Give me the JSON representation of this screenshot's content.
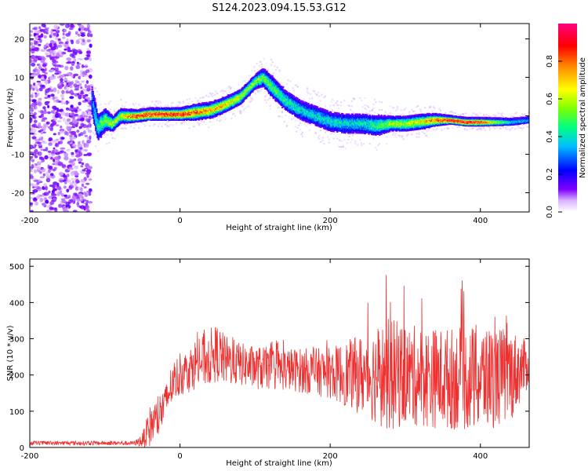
{
  "figure": {
    "title": "S124.2023.094.15.53.G12"
  },
  "chart_data": [
    {
      "type": "heatmap",
      "xlabel": "Height of straight line (km)",
      "ylabel": "Frequency (Hz)",
      "xlim": [
        -200,
        465
      ],
      "ylim": [
        -25,
        24
      ],
      "x_ticks": [
        -200,
        0,
        200,
        400
      ],
      "y_ticks": [
        -20,
        -10,
        0,
        10,
        20
      ],
      "colorbar": {
        "label": "Normalized spectral amplitude",
        "range": [
          0,
          1
        ],
        "ticks": [
          0.0,
          0.2,
          0.4,
          0.6,
          0.8
        ],
        "tick_labels": [
          "0.0",
          "0.2",
          "0.4",
          "0.6",
          "0.8"
        ],
        "colormap": [
          "#ffffff",
          "#d9b3ff",
          "#8000ff",
          "#0000ff",
          "#00c0ff",
          "#00ff80",
          "#80ff00",
          "#ffff00",
          "#ff8000",
          "#ff0000",
          "#ff0080"
        ]
      },
      "noise_region_x": [
        -200,
        -118
      ],
      "ridge": {
        "x": [
          -118,
          -110,
          -100,
          -90,
          -80,
          -60,
          -40,
          -20,
          0,
          20,
          40,
          60,
          80,
          90,
          100,
          110,
          120,
          140,
          160,
          180,
          200,
          220,
          240,
          260,
          280,
          300,
          320,
          340,
          360,
          380,
          400,
          420,
          440,
          465
        ],
        "freq": [
          4,
          -3,
          -1,
          -2,
          0,
          0,
          0.5,
          0.5,
          0.5,
          1,
          1.5,
          3,
          5,
          7,
          9,
          10,
          8,
          4,
          1.5,
          0,
          -1.5,
          -2,
          -2,
          -2.5,
          -2,
          -2,
          -1.5,
          -1,
          -1,
          -1.5,
          -1.5,
          -1.5,
          -1.5,
          -1
        ],
        "spread": [
          5,
          4,
          3,
          2,
          2,
          1.5,
          1.5,
          1.5,
          1.5,
          2,
          2,
          2,
          2,
          2,
          2,
          2.5,
          3,
          3,
          3,
          3,
          3,
          3,
          3,
          3,
          2,
          2,
          2,
          1.5,
          1,
          1,
          1,
          1,
          1,
          1
        ],
        "peak_amp": [
          0.3,
          0.45,
          0.55,
          0.6,
          0.6,
          0.85,
          0.9,
          0.9,
          0.9,
          0.8,
          0.75,
          0.7,
          0.6,
          0.55,
          0.55,
          0.55,
          0.5,
          0.45,
          0.4,
          0.4,
          0.4,
          0.4,
          0.4,
          0.45,
          0.6,
          0.6,
          0.65,
          0.8,
          0.95,
          0.95,
          0.9,
          0.6,
          0.4,
          0.35
        ]
      }
    },
    {
      "type": "line",
      "xlabel": "Height of straight line (km)",
      "ylabel": "SNR (10 * v/v)",
      "xlim": [
        -200,
        465
      ],
      "ylim": [
        0,
        520
      ],
      "x_ticks": [
        -200,
        0,
        200,
        400
      ],
      "y_ticks": [
        0,
        100,
        200,
        300,
        400,
        500
      ],
      "color": "#ee3030",
      "envelope": {
        "x": [
          -200,
          -60,
          -50,
          -40,
          -30,
          -20,
          -10,
          0,
          10,
          20,
          40,
          50,
          60,
          80,
          100,
          150,
          200,
          250,
          280,
          300,
          350,
          400,
          440,
          465
        ],
        "center": [
          12,
          12,
          20,
          60,
          80,
          120,
          180,
          200,
          210,
          230,
          250,
          260,
          240,
          230,
          220,
          215,
          205,
          200,
          200,
          200,
          190,
          190,
          200,
          230
        ],
        "amplitude": [
          6,
          6,
          20,
          60,
          60,
          60,
          60,
          60,
          60,
          70,
          80,
          80,
          70,
          60,
          60,
          60,
          70,
          120,
          160,
          140,
          140,
          150,
          130,
          60
        ],
        "max": [
          18,
          18,
          40,
          110,
          140,
          160,
          230,
          260,
          270,
          320,
          330,
          390,
          330,
          320,
          310,
          300,
          320,
          400,
          520,
          440,
          470,
          510,
          430,
          330
        ]
      }
    }
  ]
}
